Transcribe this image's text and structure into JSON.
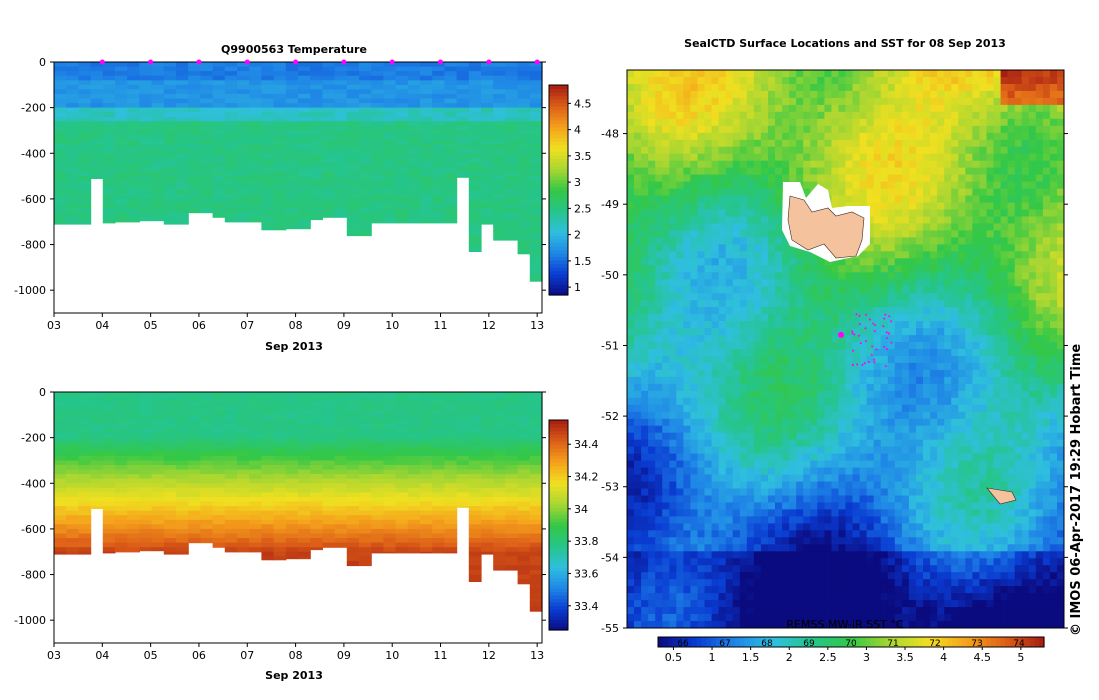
{
  "colors": {
    "temperature_scale": [
      "#0b0b80",
      "#0a3cd2",
      "#1f86e6",
      "#2fbfdf",
      "#25c58a",
      "#34c846",
      "#a8d632",
      "#f0e020",
      "#f5a21c",
      "#dd5f18",
      "#a61d12"
    ],
    "salinity_scale": [
      "#0b0b80",
      "#0a3cd2",
      "#1f86e6",
      "#2fbfdf",
      "#25c58a",
      "#34c846",
      "#a8d632",
      "#f0e020",
      "#f5a21c",
      "#dd5f18",
      "#a61d12"
    ],
    "island": "#f5c29e",
    "marker": "#ff00ff"
  },
  "chart_data": [
    {
      "type": "heatmap",
      "title": "Q9900563  Temperature",
      "xlabel": "Sep 2013",
      "x_ticks": [
        "03",
        "04",
        "05",
        "06",
        "07",
        "08",
        "09",
        "10",
        "11",
        "12",
        "13"
      ],
      "x_tick_values": [
        3,
        4,
        5,
        6,
        7,
        8,
        9,
        10,
        11,
        12,
        13
      ],
      "xlim": [
        3,
        13.1
      ],
      "y_ticks": [
        "0",
        "-200",
        "-400",
        "-600",
        "-800",
        "-1000"
      ],
      "y_tick_values": [
        0,
        -200,
        -400,
        -600,
        -800,
        -1000
      ],
      "ylim": [
        -1100,
        0
      ],
      "colorbar": {
        "ticks": [
          "1",
          "1.5",
          "2",
          "2.5",
          "3",
          "3.5",
          "4",
          "4.5"
        ],
        "tick_values": [
          1,
          1.5,
          2,
          2.5,
          3,
          3.5,
          4,
          4.5
        ],
        "range": [
          0.85,
          4.85
        ]
      },
      "profile_marker_days": [
        4,
        5,
        6,
        7,
        8,
        9,
        10,
        11,
        12,
        13
      ],
      "profile_bottoms": [
        {
          "x0": 3.0,
          "x1": 3.7,
          "depth": -710
        },
        {
          "x0": 3.7,
          "x1": 4.0,
          "depth": -510
        },
        {
          "x0": 4.0,
          "x1": 4.2,
          "depth": -705
        },
        {
          "x0": 4.2,
          "x1": 4.7,
          "depth": -700
        },
        {
          "x0": 4.7,
          "x1": 5.2,
          "depth": -695
        },
        {
          "x0": 5.2,
          "x1": 5.8,
          "depth": -710
        },
        {
          "x0": 5.8,
          "x1": 6.4,
          "depth": -660
        },
        {
          "x0": 6.4,
          "x1": 6.6,
          "depth": -680
        },
        {
          "x0": 6.6,
          "x1": 7.2,
          "depth": -700
        },
        {
          "x0": 7.2,
          "x1": 7.8,
          "depth": -735
        },
        {
          "x0": 7.8,
          "x1": 8.3,
          "depth": -730
        },
        {
          "x0": 8.3,
          "x1": 8.6,
          "depth": -690
        },
        {
          "x0": 8.6,
          "x1": 9.0,
          "depth": -680
        },
        {
          "x0": 9.0,
          "x1": 9.5,
          "depth": -760
        },
        {
          "x0": 9.5,
          "x1": 10.0,
          "depth": -705
        },
        {
          "x0": 10.0,
          "x1": 10.3,
          "depth": -705
        },
        {
          "x0": 10.3,
          "x1": 11.0,
          "depth": -705
        },
        {
          "x0": 11.0,
          "x1": 11.3,
          "depth": -705
        },
        {
          "x0": 11.3,
          "x1": 11.5,
          "depth": -505
        },
        {
          "x0": 11.5,
          "x1": 11.9,
          "depth": -830
        },
        {
          "x0": 11.9,
          "x1": 12.2,
          "depth": -710
        },
        {
          "x0": 12.2,
          "x1": 12.5,
          "depth": -780
        },
        {
          "x0": 12.5,
          "x1": 12.9,
          "depth": -840
        },
        {
          "x0": 12.9,
          "x1": 13.1,
          "depth": -960
        }
      ],
      "layers": [
        {
          "from": 0,
          "to": -80,
          "value": 1.6
        },
        {
          "from": -80,
          "to": -200,
          "value": 1.75
        },
        {
          "from": -200,
          "to": -260,
          "value": 2.2
        },
        {
          "from": -260,
          "to": -1100,
          "value": 2.5
        }
      ]
    },
    {
      "type": "heatmap",
      "xlabel": "Sep 2013",
      "x_ticks": [
        "03",
        "04",
        "05",
        "06",
        "07",
        "08",
        "09",
        "10",
        "11",
        "12",
        "13"
      ],
      "x_tick_values": [
        3,
        4,
        5,
        6,
        7,
        8,
        9,
        10,
        11,
        12,
        13
      ],
      "xlim": [
        3,
        13.1
      ],
      "y_ticks": [
        "0",
        "-200",
        "-400",
        "-600",
        "-800",
        "-1000"
      ],
      "y_tick_values": [
        0,
        -200,
        -400,
        -600,
        -800,
        -1000
      ],
      "ylim": [
        -1100,
        0
      ],
      "colorbar": {
        "ticks": [
          "33.4",
          "33.6",
          "33.8",
          "34",
          "34.2",
          "34.4"
        ],
        "tick_values": [
          33.4,
          33.6,
          33.8,
          34,
          34.2,
          34.4
        ],
        "range": [
          33.25,
          34.55
        ]
      },
      "layers": [
        {
          "from": 0,
          "to": -200,
          "value": 33.78
        },
        {
          "from": -200,
          "to": -300,
          "value": 33.9
        },
        {
          "from": -300,
          "to": -400,
          "value": 34.05
        },
        {
          "from": -400,
          "to": -500,
          "value": 34.2
        },
        {
          "from": -500,
          "to": -600,
          "value": 34.33
        },
        {
          "from": -600,
          "to": -1100,
          "value": 34.45
        }
      ]
    },
    {
      "type": "heatmap",
      "title": "SealCTD Surface Locations and SST for 08 Sep 2013",
      "y_ticks": [
        "-48",
        "-49",
        "-50",
        "-51",
        "-52",
        "-53",
        "-54",
        "-55"
      ],
      "y_tick_values": [
        -48,
        -49,
        -50,
        -51,
        -52,
        -53,
        -54,
        -55
      ],
      "ylim": [
        -55,
        -47.1
      ],
      "colorbar_label": "REMSS MW-IR SST °C",
      "colorbar": {
        "ticks": [
          "0.5",
          "1",
          "1.5",
          "2",
          "2.5",
          "3",
          "3.5",
          "4",
          "4.5",
          "5"
        ],
        "tick_values": [
          0.5,
          1,
          1.5,
          2,
          2.5,
          3,
          3.5,
          4,
          4.5,
          5
        ],
        "top_ticks": [
          "66",
          "67",
          "68",
          "69",
          "70",
          "71",
          "72",
          "73",
          "74"
        ],
        "range": [
          0.3,
          5.3
        ]
      },
      "marker_location": {
        "lon": 0.5,
        "lat": -50.85
      }
    }
  ],
  "credit": "© IMOS 06-Apr-2017 19:29 Hobart Time"
}
